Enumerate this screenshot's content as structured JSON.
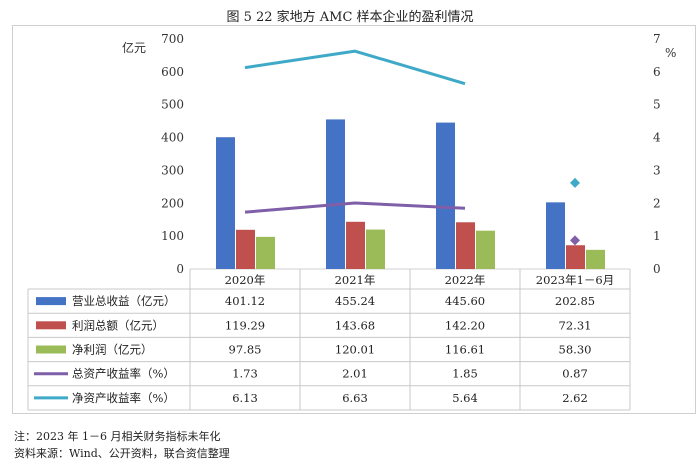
{
  "title": "图 5   22 家地方 AMC 样本企业的盈利情况",
  "notes": {
    "note1": "注：2023 年 1－6 月相关财务指标未年化",
    "note2": "资料来源：Wind、公开资料，联合资信整理"
  },
  "chart_data": {
    "type": "bar",
    "left_unit": "亿元",
    "right_unit": "%",
    "categories": [
      "2020年",
      "2021年",
      "2022年",
      "2023年1－6月"
    ],
    "ylim_left": [
      0,
      700
    ],
    "yticks_left": [
      "0",
      "100",
      "200",
      "300",
      "400",
      "500",
      "600",
      "700"
    ],
    "ylim_right": [
      0,
      7
    ],
    "yticks_right": [
      "0",
      "1",
      "2",
      "3",
      "4",
      "5",
      "6",
      "7"
    ],
    "grid": false,
    "series": [
      {
        "name": "营业总收益（亿元）",
        "kind": "bar",
        "axis": "left",
        "color": "#4472C4",
        "values": [
          401.12,
          455.24,
          445.6,
          202.85
        ],
        "labels": [
          "401.12",
          "455.24",
          "445.60",
          "202.85"
        ]
      },
      {
        "name": "利润总额（亿元）",
        "kind": "bar",
        "axis": "left",
        "color": "#C0504D",
        "values": [
          119.29,
          143.68,
          142.2,
          72.31
        ],
        "labels": [
          "119.29",
          "143.68",
          "142.20",
          "72.31"
        ]
      },
      {
        "name": "净利润（亿元）",
        "kind": "bar",
        "axis": "left",
        "color": "#9BBB59",
        "values": [
          97.85,
          120.01,
          116.61,
          58.3
        ],
        "labels": [
          "97.85",
          "120.01",
          "116.61",
          "58.30"
        ]
      },
      {
        "name": "总资产收益率（%）",
        "kind": "line",
        "axis": "right",
        "color": "#7F5FA8",
        "values": [
          1.73,
          2.01,
          1.85,
          0.87
        ],
        "labels": [
          "1.73",
          "2.01",
          "1.85",
          "0.87"
        ]
      },
      {
        "name": "净资产收益率（%）",
        "kind": "line",
        "axis": "right",
        "color": "#3FA9C8",
        "values": [
          6.13,
          6.63,
          5.64,
          2.62
        ],
        "labels": [
          "6.13",
          "6.63",
          "5.64",
          "2.62"
        ]
      }
    ],
    "line_break_before_last": true
  }
}
